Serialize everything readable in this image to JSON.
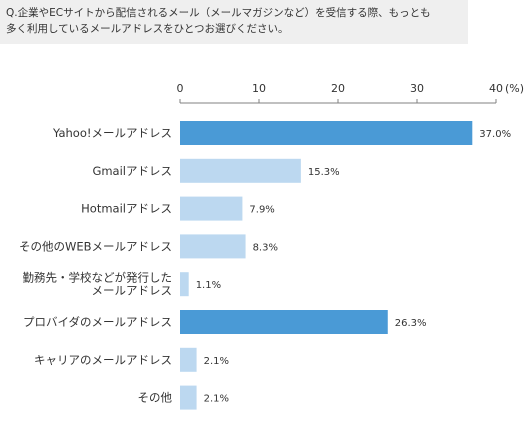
{
  "question": {
    "line1": "Q.企業やECサイトから配信されるメール（メールマガジンなど）を受信する際、もっとも",
    "line2": "多く利用しているメールアドレスをひとつお選びください。"
  },
  "chart_data": {
    "type": "bar",
    "orientation": "horizontal",
    "title": "",
    "xlabel": "",
    "ylabel": "",
    "xlim": [
      0,
      40
    ],
    "ticks": [
      0,
      10,
      20,
      30,
      40
    ],
    "tick_labels": [
      "0",
      "10",
      "20",
      "30",
      "40"
    ],
    "unit_label": "(%)",
    "grid": false,
    "categories": [
      [
        "Yahoo!メールアドレス"
      ],
      [
        "Gmailアドレス"
      ],
      [
        "Hotmailアドレス"
      ],
      [
        "その他のWEBメールアドレス"
      ],
      [
        "勤務先・学校などが発行した",
        "メールアドレス"
      ],
      [
        "プロバイダのメールアドレス"
      ],
      [
        "キャリアのメールアドレス"
      ],
      [
        "その他"
      ]
    ],
    "values": [
      37.0,
      15.3,
      7.9,
      8.3,
      1.1,
      26.3,
      2.1,
      2.1
    ],
    "value_labels": [
      "37.0%",
      "15.3%",
      "7.9%",
      "8.3%",
      "1.1%",
      "26.3%",
      "2.1%",
      "2.1%"
    ],
    "highlighted": [
      true,
      false,
      false,
      false,
      false,
      true,
      false,
      false
    ]
  },
  "colors": {
    "highlight_bar": "#4a9ad6",
    "normal_bar": "#bcd8f0",
    "axis": "#808080",
    "text": "#333333"
  }
}
